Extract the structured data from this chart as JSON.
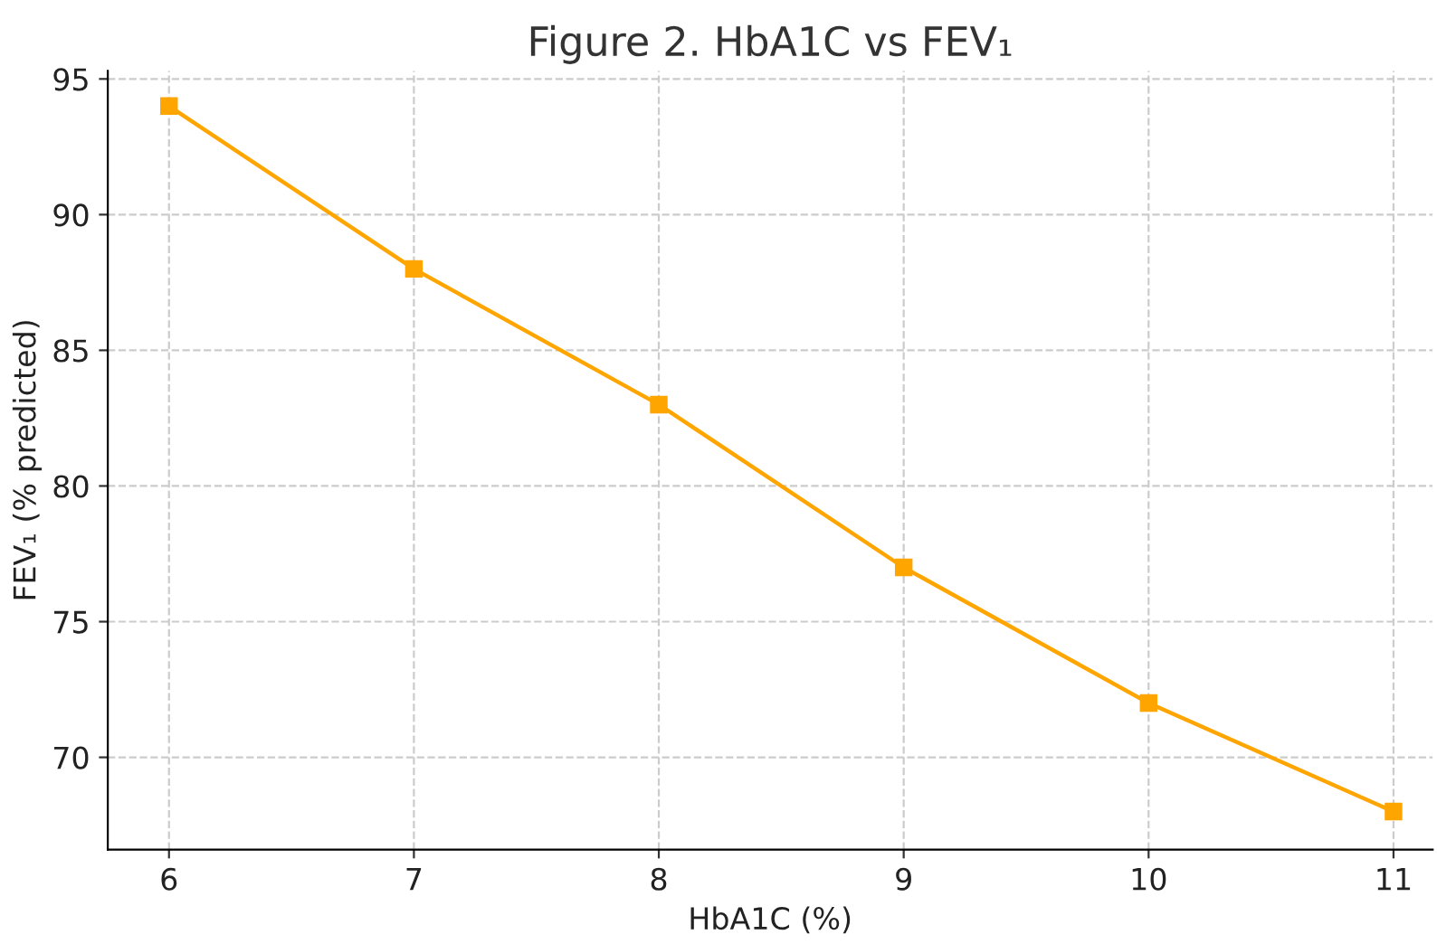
{
  "chart_data": {
    "type": "line",
    "title": "Figure 2. HbA1C vs FEV₁",
    "xlabel": "HbA1C (%)",
    "ylabel": "FEV₁ (% predicted)",
    "x": [
      6,
      7,
      8,
      9,
      10,
      11
    ],
    "series": [
      {
        "color": "#ffa500",
        "values": [
          94,
          88,
          83,
          77,
          72,
          68
        ]
      }
    ],
    "marker": "square",
    "line_style": "solid",
    "grid": true,
    "xlim": [
      5.75,
      11.16
    ],
    "xticks": [
      6,
      7,
      8,
      9,
      10,
      11
    ],
    "ylim": [
      66.6,
      95.3
    ],
    "yticks": [
      70,
      75,
      80,
      85,
      90,
      95
    ]
  }
}
